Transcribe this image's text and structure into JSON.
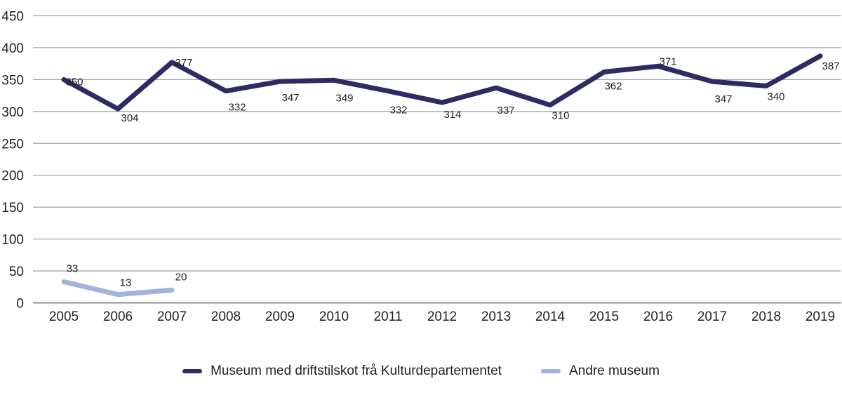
{
  "chart_data": {
    "type": "line",
    "title": "",
    "xlabel": "",
    "ylabel": "",
    "x": [
      "2005",
      "2006",
      "2007",
      "2008",
      "2009",
      "2010",
      "2011",
      "2012",
      "2013",
      "2014",
      "2015",
      "2016",
      "2017",
      "2018",
      "2019"
    ],
    "y_ticks": [
      450,
      400,
      350,
      300,
      250,
      200,
      150,
      100,
      50,
      0
    ],
    "ylim": [
      0,
      450
    ],
    "grid": true,
    "legend_position": "bottom-center",
    "colors": {
      "gridline": "#a6a6a6",
      "zero_line": "#8f8f8f",
      "axis_text": "#1f1f1f",
      "data_label_text": "#1f1f1f"
    },
    "series": [
      {
        "name": "Museum med driftstilskot frå Kulturdepartementet",
        "color": "#2d2a64",
        "values": [
          350,
          304,
          377,
          332,
          347,
          349,
          332,
          314,
          337,
          310,
          362,
          371,
          347,
          340,
          387
        ],
        "data_labels": true,
        "label_offsets": [
          [
            15,
            8
          ],
          [
            17,
            18
          ],
          [
            17,
            5
          ],
          [
            16,
            28
          ],
          [
            15,
            28
          ],
          [
            15,
            30
          ],
          [
            15,
            32
          ],
          [
            15,
            22
          ],
          [
            14,
            37
          ],
          [
            15,
            20
          ],
          [
            13,
            25
          ],
          [
            14,
            -2
          ],
          [
            16,
            30
          ],
          [
            14,
            20
          ],
          [
            15,
            19
          ]
        ]
      },
      {
        "name": "Andre museum",
        "color": "#a3b2dc",
        "values": [
          33,
          13,
          20
        ],
        "data_labels": true,
        "label_offsets": [
          [
            12,
            -14
          ],
          [
            11,
            -12
          ],
          [
            13,
            -14
          ]
        ]
      }
    ]
  }
}
